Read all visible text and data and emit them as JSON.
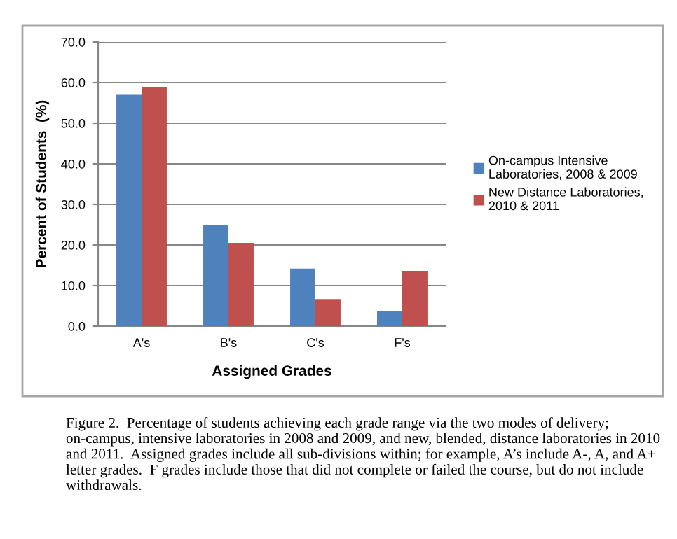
{
  "chart_data": {
    "type": "bar",
    "xlabel": "Assigned Grades",
    "ylabel": "Percent of Students  (%)",
    "categories": [
      "A's",
      "B's",
      "C's",
      "F's"
    ],
    "series": [
      {
        "name": "On-campus Intensive Laboratories, 2008 & 2009",
        "color": "#4f81bd",
        "values": [
          57.0,
          24.9,
          14.2,
          3.7
        ]
      },
      {
        "name": "New Distance Laboratories, 2010 & 2011",
        "color": "#c0504d",
        "values": [
          58.9,
          20.5,
          6.7,
          13.6
        ]
      }
    ],
    "ylim": [
      0,
      70
    ],
    "yticks": [
      {
        "value": 0,
        "label": "0.0"
      },
      {
        "value": 10,
        "label": "10.0"
      },
      {
        "value": 20,
        "label": "20.0"
      },
      {
        "value": 30,
        "label": "30.0"
      },
      {
        "value": 40,
        "label": "40.0"
      },
      {
        "value": 50,
        "label": "50.0"
      },
      {
        "value": 60,
        "label": "60.0"
      },
      {
        "value": 70,
        "label": "70.0"
      }
    ],
    "grid": "y",
    "legend": "right",
    "annotations": [
      "Figure 2.  Percentage of students achieving each grade range via the two modes of delivery; on-campus, intensive laboratories in 2008 and 2009, and new, blended, distance laboratories in 2010 and 2011.  Assigned grades include all sub-divisions within; for example, A’s include A-, A, and A+ letter grades.  F grades include those that did not complete or failed the course, but do not include withdrawals."
    ]
  }
}
